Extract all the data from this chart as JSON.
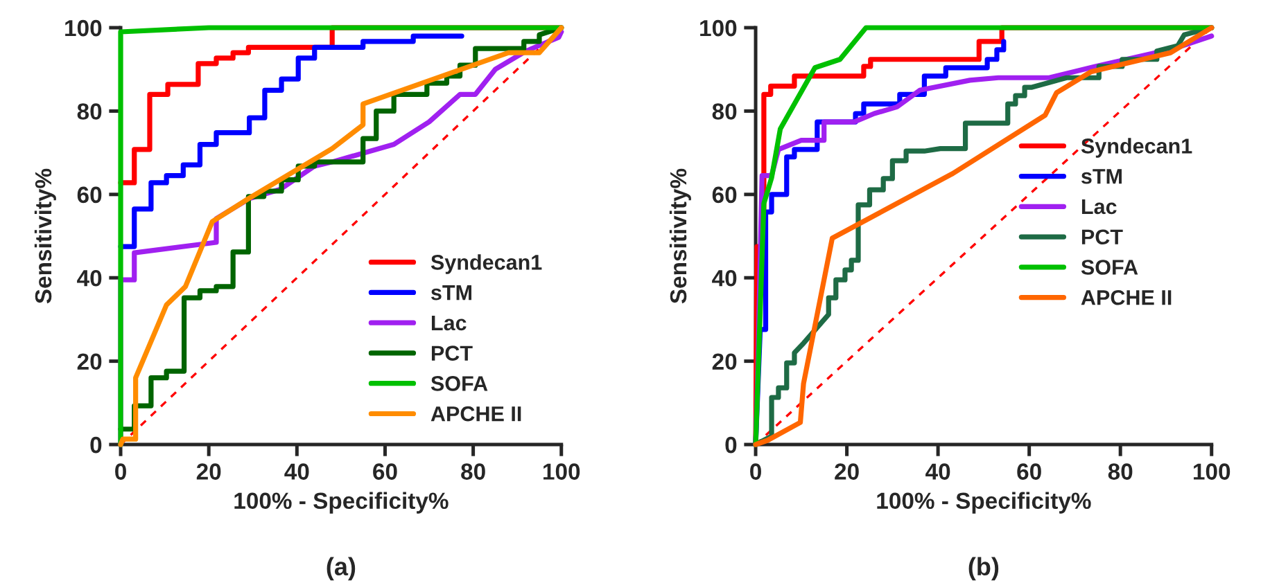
{
  "chart_data": [
    {
      "type": "line",
      "xlabel": "100% - Specificity%",
      "ylabel": "Sensitivity%",
      "annotations": [
        "(a)"
      ],
      "xlim": [
        0,
        100
      ],
      "ylim": [
        0,
        100
      ],
      "xticks": [
        0,
        20,
        40,
        60,
        80,
        100
      ],
      "yticks": [
        0,
        20,
        40,
        60,
        80,
        100
      ],
      "grid": false,
      "legend": "bottom right",
      "marker": "none",
      "line_style": "solid",
      "series": [
        {
          "name": "Syndecan1",
          "color": "#ff0000",
          "x": [
            0,
            3.1,
            3.1,
            6.6,
            6.6,
            10.7,
            10.7,
            17.6,
            17.6,
            21.7,
            21.7,
            25.5,
            25.5,
            29,
            29,
            48,
            48,
            100
          ],
          "values": [
            62.8,
            62.8,
            70.8,
            70.8,
            84,
            84,
            86.4,
            86.4,
            91.4,
            91.4,
            92.7,
            92.7,
            94,
            94,
            95.3,
            95.3,
            100,
            100
          ]
        },
        {
          "name": "sTM",
          "color": "#0000ff",
          "x": [
            0,
            3.1,
            3.1,
            6.9,
            6.9,
            10.4,
            10.4,
            14.2,
            14.2,
            18,
            18,
            21.7,
            21.7,
            29.2,
            29.2,
            32.7,
            32.7,
            36.5,
            36.5,
            40.3,
            40.3,
            44,
            44,
            55,
            55,
            66.4,
            66.4,
            77.4
          ],
          "values": [
            47.5,
            47.5,
            56.5,
            56.5,
            62.8,
            62.8,
            64.5,
            64.5,
            67.1,
            67.1,
            72,
            72,
            74.8,
            74.8,
            78.4,
            78.4,
            85,
            85,
            87.7,
            87.7,
            92.7,
            92.7,
            95.3,
            95.3,
            96.7,
            96.7,
            98,
            98
          ]
        },
        {
          "name": "Lac",
          "color": "#a020f0",
          "x": [
            0,
            0,
            3.1,
            3.1,
            21.7,
            21.7,
            29.2,
            36.2,
            44,
            48,
            62,
            70,
            77,
            80.5,
            85,
            92,
            99.4,
            100
          ],
          "values": [
            0,
            39.5,
            39.5,
            46,
            48.5,
            54.2,
            59,
            61.2,
            66.8,
            67.8,
            72,
            77.4,
            84,
            84,
            90,
            94.4,
            97.7,
            99
          ]
        },
        {
          "name": "PCT",
          "color": "#006400",
          "x": [
            0,
            3.1,
            3.1,
            6.9,
            6.9,
            10.4,
            10.4,
            14.4,
            14.4,
            18,
            18,
            21.7,
            21.7,
            25.5,
            25.5,
            29,
            29,
            32.5,
            32.5,
            36.5,
            36.5,
            40.3,
            40.3,
            44,
            44,
            55,
            55,
            58,
            58,
            62,
            62,
            69.5,
            69.5,
            74,
            74,
            77,
            77,
            80.5,
            80.5,
            91.5,
            91.5,
            95,
            95,
            100
          ],
          "values": [
            3.7,
            3.7,
            9.3,
            9.3,
            16,
            16,
            17.6,
            17.6,
            35.2,
            35.2,
            36.9,
            36.9,
            37.9,
            37.9,
            46.2,
            46.2,
            59.5,
            59.5,
            60.8,
            60.8,
            63.5,
            63.5,
            66.8,
            66.8,
            67.8,
            67.8,
            73.4,
            73.4,
            80,
            80,
            84,
            84,
            86.7,
            86.7,
            88.4,
            88.4,
            91,
            91,
            95,
            95,
            96.7,
            96.7,
            98.3,
            100
          ]
        },
        {
          "name": "SOFA",
          "color": "#00c000",
          "x": [
            0,
            0,
            20,
            100
          ],
          "values": [
            0,
            99,
            100,
            100
          ]
        },
        {
          "name": "APCHE II",
          "color": "#ff8c00",
          "x": [
            0,
            0.5,
            3.4,
            3.4,
            10.4,
            14.7,
            20.8,
            29,
            48,
            55,
            55,
            88,
            95,
            100
          ],
          "values": [
            0,
            1.3,
            1.3,
            16,
            33.5,
            37.9,
            53.5,
            59,
            71,
            76.7,
            81.7,
            94,
            94,
            100
          ]
        },
        {
          "color": "#ff0000",
          "line_style": "dashed",
          "x": [
            0,
            100
          ],
          "values": [
            0,
            100
          ]
        }
      ]
    },
    {
      "type": "line",
      "xlabel": "100% - Specificity%",
      "ylabel": "Sensitivity%",
      "annotations": [
        "(b)"
      ],
      "xlim": [
        0,
        100
      ],
      "ylim": [
        0,
        100
      ],
      "xticks": [
        0,
        20,
        40,
        60,
        80,
        100
      ],
      "yticks": [
        0,
        20,
        40,
        60,
        80,
        100
      ],
      "grid": false,
      "legend": "right",
      "marker": "none",
      "line_style": "solid",
      "series": [
        {
          "name": "Syndecan1",
          "color": "#ff0000",
          "x": [
            0,
            0.3,
            1.8,
            1.8,
            3.3,
            3.3,
            8.5,
            8.5,
            23.7,
            23.7,
            25.2,
            25.2,
            49,
            49,
            54,
            54,
            100
          ],
          "values": [
            0,
            47.5,
            47.5,
            84,
            84,
            86,
            86,
            88.4,
            88.4,
            90.7,
            90.7,
            92.4,
            92.4,
            96.7,
            96.7,
            100,
            100
          ]
        },
        {
          "name": "sTM",
          "color": "#0000ff",
          "x": [
            0,
            1,
            2.2,
            2.2,
            3.5,
            3.5,
            6.8,
            6.8,
            8.5,
            8.5,
            13.5,
            13.5,
            21.9,
            21.9,
            23.7,
            23.7,
            31.6,
            31.6,
            37,
            37,
            41.7,
            41.7,
            50.8,
            50.8,
            52.9,
            52.9,
            54.4,
            54.4
          ],
          "values": [
            0,
            27.6,
            27.6,
            55.8,
            55.8,
            60,
            60,
            69,
            69,
            70.8,
            70.8,
            77.4,
            77.4,
            79.4,
            79.4,
            81.7,
            81.7,
            84,
            84,
            88.4,
            88.4,
            90.4,
            90.4,
            92.4,
            92.4,
            94.7,
            94.7,
            96.7
          ]
        },
        {
          "name": "Lac",
          "color": "#a020f0",
          "x": [
            0,
            0.5,
            1.4,
            3.5,
            5,
            10,
            15,
            15,
            21.6,
            26,
            31,
            36,
            47,
            53.2,
            64.4,
            74.5,
            91.8,
            100
          ],
          "values": [
            0,
            19.6,
            64.5,
            64.5,
            70.8,
            73,
            73,
            77.4,
            77.4,
            79.4,
            81,
            85,
            87.4,
            88,
            88,
            90.7,
            95,
            98
          ]
        },
        {
          "name": "PCT",
          "color": "#1e6b45",
          "x": [
            0,
            3.5,
            3.5,
            5,
            5,
            6.8,
            6.8,
            8.5,
            8.5,
            10.5,
            16,
            16,
            17.6,
            17.6,
            19.6,
            19.6,
            21,
            21,
            22.5,
            22.5,
            25,
            25,
            28,
            28,
            30,
            30,
            33,
            33,
            37,
            37,
            40.5,
            46,
            46,
            55.3,
            55.3,
            57,
            57,
            59,
            59,
            60.6,
            60.6,
            68.2,
            70.3,
            75.3,
            75.3,
            80.4,
            80.4,
            88,
            88,
            92.6,
            94,
            100
          ],
          "values": [
            0,
            2,
            11.3,
            11.3,
            13.6,
            13.6,
            19.6,
            19.6,
            22,
            24.3,
            31.2,
            35.2,
            35.2,
            39.5,
            39.5,
            41.9,
            41.9,
            44.2,
            44.2,
            57.5,
            57.5,
            61.1,
            61.1,
            63.8,
            63.8,
            68.1,
            68.1,
            70.4,
            70.4,
            70.4,
            71,
            71,
            77.1,
            77.1,
            81.7,
            81.7,
            83.7,
            83.7,
            85.7,
            85.7,
            85.7,
            88,
            88,
            88,
            90.7,
            90.7,
            92.4,
            92.4,
            94.4,
            95.7,
            98.3,
            100
          ]
        },
        {
          "name": "SOFA",
          "color": "#00c000",
          "x": [
            0,
            1.8,
            3.5,
            5.4,
            13,
            18.5,
            24.2,
            100
          ],
          "values": [
            0,
            57.8,
            64,
            75.7,
            90.4,
            92.4,
            100,
            100
          ]
        },
        {
          "name": "APCHE II",
          "color": "#ff6600",
          "x": [
            0,
            2.6,
            9.8,
            10.5,
            16.8,
            43.2,
            63.5,
            66,
            73.5,
            91,
            100
          ],
          "values": [
            0,
            1,
            5.3,
            14.6,
            49.5,
            65,
            79,
            84.4,
            89.4,
            94,
            100
          ]
        },
        {
          "color": "#ff0000",
          "line_style": "dashed",
          "x": [
            0,
            100
          ],
          "values": [
            0,
            100
          ]
        }
      ]
    }
  ]
}
